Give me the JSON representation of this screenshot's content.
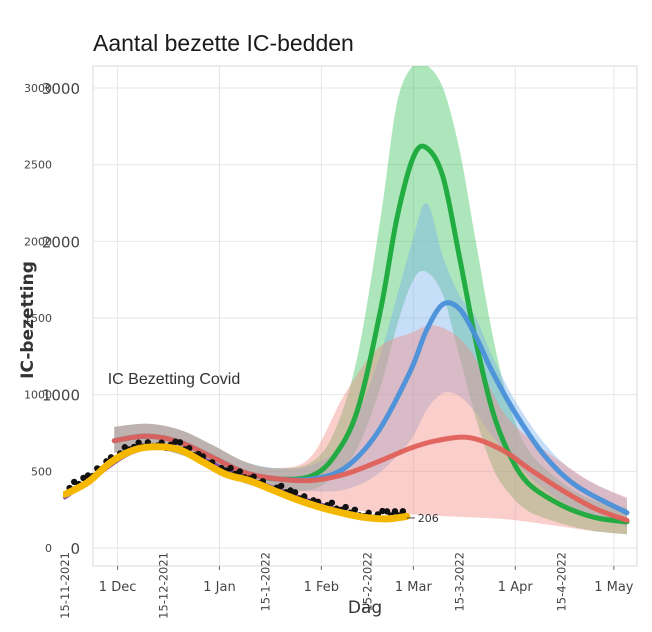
{
  "chart_data": {
    "type": "line",
    "title": "Aantal bezette IC-bedden",
    "xlabel": "Dag",
    "ylabel": "IC-bezetting",
    "x_range": [
      "2021-11-15",
      "2022-05-05"
    ],
    "ylim": [
      0,
      3000
    ],
    "y_ticks": [
      "0",
      "500",
      "1000",
      "1500",
      "2000",
      "2500",
      "3000"
    ],
    "y_ticks_overlay": [
      "0",
      "1000",
      "2000",
      "3000"
    ],
    "x_ticks": [
      {
        "date": "2021-12-01",
        "label": "1 Dec"
      },
      {
        "date": "2022-01-01",
        "label": "1 Jan"
      },
      {
        "date": "2022-02-01",
        "label": "1 Feb"
      },
      {
        "date": "2022-03-01",
        "label": "1 Mar"
      },
      {
        "date": "2022-04-01",
        "label": "1 Apr"
      },
      {
        "date": "2022-05-01",
        "label": "1 May"
      }
    ],
    "x_ticks_dates": [
      {
        "date": "2021-11-15",
        "label": "15-11-2021"
      },
      {
        "date": "2021-12-15",
        "label": "15-12-2021"
      },
      {
        "date": "2022-01-15",
        "label": "15-1-2022"
      },
      {
        "date": "2022-02-15",
        "label": "15-2-2022"
      },
      {
        "date": "2022-03-15",
        "label": "15-3-2022"
      },
      {
        "date": "2022-04-15",
        "label": "15-4-2022"
      }
    ],
    "grid": true,
    "annotations": [
      {
        "text": "IC Bezetting Covid",
        "date": "2021-11-28",
        "y": 1070
      },
      {
        "text": "206",
        "date": "2022-02-27",
        "y": 170
      }
    ],
    "series": [
      {
        "color": "#1aaa3c",
        "band_color": "#3cc45a",
        "x": [
          "2021-11-30",
          "2021-12-10",
          "2021-12-20",
          "2021-12-30",
          "2022-01-09",
          "2022-01-19",
          "2022-01-29",
          "2022-02-05",
          "2022-02-12",
          "2022-02-19",
          "2022-02-24",
          "2022-03-01",
          "2022-03-05",
          "2022-03-10",
          "2022-03-15",
          "2022-03-20",
          "2022-03-25",
          "2022-03-30",
          "2022-04-05",
          "2022-04-15",
          "2022-04-25",
          "2022-05-05"
        ],
        "y": [
          700,
          730,
          690,
          590,
          490,
          450,
          470,
          600,
          900,
          1550,
          2150,
          2550,
          2610,
          2420,
          1900,
          1350,
          900,
          620,
          420,
          280,
          200,
          170
        ],
        "lower": [
          620,
          650,
          610,
          520,
          420,
          380,
          380,
          470,
          650,
          1050,
          1450,
          1750,
          1800,
          1650,
          1250,
          850,
          530,
          360,
          240,
          160,
          110,
          90
        ],
        "upper": [
          790,
          810,
          770,
          670,
          560,
          520,
          560,
          760,
          1250,
          2150,
          2900,
          3150,
          3150,
          3000,
          2600,
          2000,
          1400,
          950,
          640,
          430,
          310,
          260
        ]
      },
      {
        "color": "#4a90d9",
        "band_color": "#7ab0ee",
        "x": [
          "2021-11-30",
          "2021-12-10",
          "2021-12-20",
          "2021-12-30",
          "2022-01-09",
          "2022-01-19",
          "2022-01-29",
          "2022-02-08",
          "2022-02-18",
          "2022-02-28",
          "2022-03-05",
          "2022-03-10",
          "2022-03-15",
          "2022-03-20",
          "2022-03-25",
          "2022-04-01",
          "2022-04-10",
          "2022-04-20",
          "2022-05-05"
        ],
        "y": [
          700,
          730,
          690,
          590,
          490,
          450,
          450,
          520,
          750,
          1150,
          1420,
          1590,
          1560,
          1380,
          1150,
          880,
          600,
          400,
          230
        ],
        "lower": [
          620,
          650,
          610,
          520,
          420,
          380,
          370,
          380,
          480,
          700,
          900,
          1010,
          990,
          880,
          730,
          560,
          380,
          250,
          140
        ],
        "upper": [
          790,
          810,
          770,
          670,
          560,
          520,
          540,
          700,
          1200,
          1950,
          2250,
          1900,
          1650,
          1500,
          1250,
          960,
          680,
          480,
          320
        ]
      },
      {
        "color": "#e0605a",
        "band_color": "#f28a84",
        "x": [
          "2021-11-30",
          "2021-12-10",
          "2021-12-20",
          "2021-12-30",
          "2022-01-09",
          "2022-01-19",
          "2022-01-29",
          "2022-02-08",
          "2022-02-18",
          "2022-02-28",
          "2022-03-08",
          "2022-03-18",
          "2022-03-28",
          "2022-04-05",
          "2022-04-15",
          "2022-04-25",
          "2022-05-05"
        ],
        "y": [
          700,
          730,
          690,
          590,
          490,
          450,
          440,
          480,
          560,
          650,
          700,
          720,
          640,
          520,
          380,
          260,
          180
        ],
        "lower": [
          620,
          650,
          610,
          520,
          420,
          370,
          320,
          260,
          230,
          220,
          210,
          200,
          190,
          170,
          140,
          110,
          90
        ],
        "upper": [
          790,
          810,
          770,
          670,
          560,
          520,
          600,
          1000,
          1300,
          1400,
          1450,
          1300,
          900,
          720,
          560,
          420,
          330
        ]
      },
      {
        "color": "#7b3fa6",
        "x": [
          "2021-11-15",
          "2021-11-25",
          "2021-12-05",
          "2021-12-15",
          "2021-12-25",
          "2022-01-04",
          "2022-01-14",
          "2022-01-24",
          "2022-02-03",
          "2022-02-13",
          "2022-02-22",
          "2022-02-27"
        ],
        "y": [
          330,
          480,
          620,
          660,
          600,
          500,
          420,
          340,
          270,
          210,
          195,
          206
        ]
      },
      {
        "color": "#f5b800",
        "dots_color": "#111111",
        "x": [
          "2021-11-15",
          "2021-11-22",
          "2021-11-29",
          "2021-12-06",
          "2021-12-13",
          "2021-12-20",
          "2021-12-27",
          "2022-01-03",
          "2022-01-10",
          "2022-01-17",
          "2022-01-24",
          "2022-01-31",
          "2022-02-07",
          "2022-02-14",
          "2022-02-21",
          "2022-02-27"
        ],
        "y": [
          350,
          430,
          560,
          640,
          660,
          640,
          560,
          480,
          440,
          380,
          320,
          270,
          230,
          200,
          190,
          206
        ]
      }
    ]
  }
}
